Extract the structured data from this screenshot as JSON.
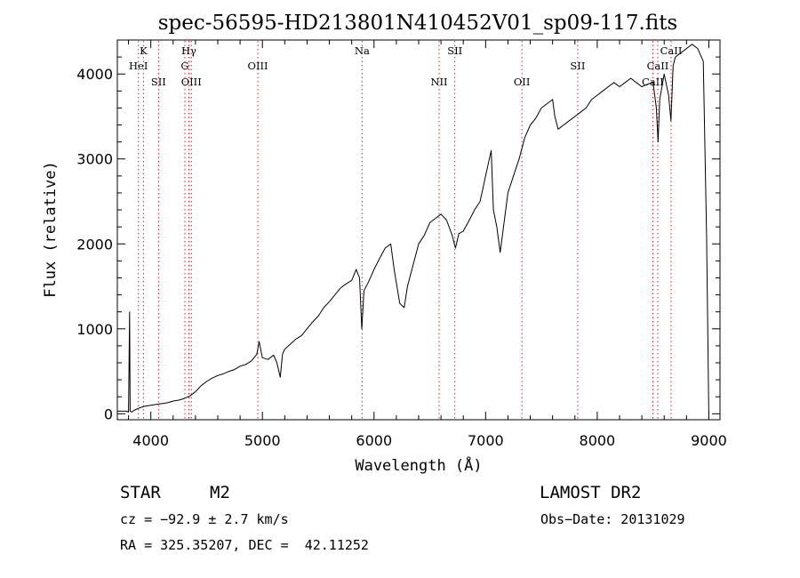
{
  "chart_data": {
    "type": "line",
    "title": "spec-56595-HD213801N410452V01_sp09-117.fits",
    "xlabel": "Wavelength (Å)",
    "ylabel": "Flux (relative)",
    "xlim": [
      3700,
      9100
    ],
    "ylim": [
      -70,
      4400
    ],
    "xticks": [
      4000,
      5000,
      6000,
      7000,
      8000,
      9000
    ],
    "yticks": [
      0,
      1000,
      2000,
      3000,
      4000
    ],
    "series": [
      {
        "points": [
          [
            3700,
            30
          ],
          [
            3780,
            30
          ],
          [
            3800,
            20
          ],
          [
            3810,
            1200
          ],
          [
            3815,
            30
          ],
          [
            3830,
            20
          ],
          [
            3850,
            40
          ],
          [
            3900,
            70
          ],
          [
            3950,
            90
          ],
          [
            4000,
            100
          ],
          [
            4050,
            110
          ],
          [
            4100,
            120
          ],
          [
            4150,
            130
          ],
          [
            4200,
            150
          ],
          [
            4250,
            160
          ],
          [
            4300,
            180
          ],
          [
            4350,
            210
          ],
          [
            4400,
            260
          ],
          [
            4450,
            330
          ],
          [
            4500,
            380
          ],
          [
            4550,
            420
          ],
          [
            4600,
            450
          ],
          [
            4650,
            470
          ],
          [
            4700,
            500
          ],
          [
            4750,
            520
          ],
          [
            4800,
            560
          ],
          [
            4850,
            580
          ],
          [
            4900,
            620
          ],
          [
            4950,
            700
          ],
          [
            4970,
            850
          ],
          [
            5000,
            660
          ],
          [
            5050,
            640
          ],
          [
            5100,
            690
          ],
          [
            5130,
            600
          ],
          [
            5160,
            430
          ],
          [
            5180,
            700
          ],
          [
            5200,
            760
          ],
          [
            5250,
            820
          ],
          [
            5300,
            880
          ],
          [
            5350,
            920
          ],
          [
            5400,
            1000
          ],
          [
            5450,
            1080
          ],
          [
            5500,
            1150
          ],
          [
            5550,
            1250
          ],
          [
            5600,
            1320
          ],
          [
            5650,
            1400
          ],
          [
            5700,
            1480
          ],
          [
            5750,
            1530
          ],
          [
            5800,
            1570
          ],
          [
            5840,
            1700
          ],
          [
            5870,
            1600
          ],
          [
            5890,
            1000
          ],
          [
            5910,
            1450
          ],
          [
            5950,
            1550
          ],
          [
            6000,
            1700
          ],
          [
            6050,
            1830
          ],
          [
            6100,
            1950
          ],
          [
            6150,
            2000
          ],
          [
            6180,
            1700
          ],
          [
            6230,
            1300
          ],
          [
            6270,
            1250
          ],
          [
            6300,
            1500
          ],
          [
            6350,
            1750
          ],
          [
            6400,
            2000
          ],
          [
            6450,
            2100
          ],
          [
            6500,
            2250
          ],
          [
            6550,
            2300
          ],
          [
            6600,
            2350
          ],
          [
            6650,
            2280
          ],
          [
            6700,
            2100
          ],
          [
            6730,
            1950
          ],
          [
            6760,
            2120
          ],
          [
            6800,
            2150
          ],
          [
            6850,
            2270
          ],
          [
            6900,
            2400
          ],
          [
            6950,
            2500
          ],
          [
            7000,
            2800
          ],
          [
            7050,
            3100
          ],
          [
            7070,
            2400
          ],
          [
            7100,
            2200
          ],
          [
            7130,
            1900
          ],
          [
            7150,
            2100
          ],
          [
            7200,
            2600
          ],
          [
            7250,
            2800
          ],
          [
            7300,
            3000
          ],
          [
            7350,
            3250
          ],
          [
            7400,
            3400
          ],
          [
            7450,
            3480
          ],
          [
            7500,
            3600
          ],
          [
            7550,
            3650
          ],
          [
            7600,
            3700
          ],
          [
            7620,
            3500
          ],
          [
            7650,
            3350
          ],
          [
            7700,
            3400
          ],
          [
            7750,
            3450
          ],
          [
            7800,
            3500
          ],
          [
            7850,
            3550
          ],
          [
            7900,
            3600
          ],
          [
            7950,
            3700
          ],
          [
            8000,
            3750
          ],
          [
            8050,
            3800
          ],
          [
            8100,
            3850
          ],
          [
            8150,
            3900
          ],
          [
            8200,
            3850
          ],
          [
            8250,
            3900
          ],
          [
            8300,
            3950
          ],
          [
            8350,
            3900
          ],
          [
            8400,
            3850
          ],
          [
            8450,
            3880
          ],
          [
            8500,
            3900
          ],
          [
            8530,
            3600
          ],
          [
            8545,
            3200
          ],
          [
            8560,
            3700
          ],
          [
            8600,
            4000
          ],
          [
            8640,
            3750
          ],
          [
            8660,
            3450
          ],
          [
            8680,
            4100
          ],
          [
            8700,
            4200
          ],
          [
            8750,
            4250
          ],
          [
            8800,
            4300
          ],
          [
            8850,
            4350
          ],
          [
            8900,
            4300
          ],
          [
            8950,
            4150
          ],
          [
            8980,
            2100
          ],
          [
            9000,
            0
          ]
        ]
      }
    ],
    "lines": [
      {
        "label": "K",
        "x": 3934,
        "row": 0
      },
      {
        "label": "HeI",
        "x": 3889,
        "row": 1
      },
      {
        "label": "SII",
        "x": 4069,
        "row": 2
      },
      {
        "label": "Hγ",
        "x": 4341,
        "row": 0
      },
      {
        "label": "G",
        "x": 4305,
        "row": 1
      },
      {
        "label": "OIII",
        "x": 4363,
        "row": 2
      },
      {
        "label": "OIII",
        "x": 4959,
        "row": 1
      },
      {
        "label": "Na",
        "x": 5893,
        "row": 0
      },
      {
        "label": "NII",
        "x": 6583,
        "row": 2
      },
      {
        "label": "SII",
        "x": 6724,
        "row": 0
      },
      {
        "label": "OII",
        "x": 7325,
        "row": 2
      },
      {
        "label": "SII",
        "x": 7825,
        "row": 1
      },
      {
        "label": "CaII",
        "x": 8498,
        "row": 2
      },
      {
        "label": "CaII",
        "x": 8542,
        "row": 1
      },
      {
        "label": "CaII",
        "x": 8662,
        "row": 0
      }
    ]
  },
  "info": {
    "class_label": "STAR",
    "subclass": "M2",
    "survey": "LAMOST DR2",
    "cz_text": "cz = −92.9 ± 2.7 km/s",
    "obs_date": "Obs−Date: 20131029",
    "coords": "RA = 325.35207, DEC =  42.11252"
  }
}
